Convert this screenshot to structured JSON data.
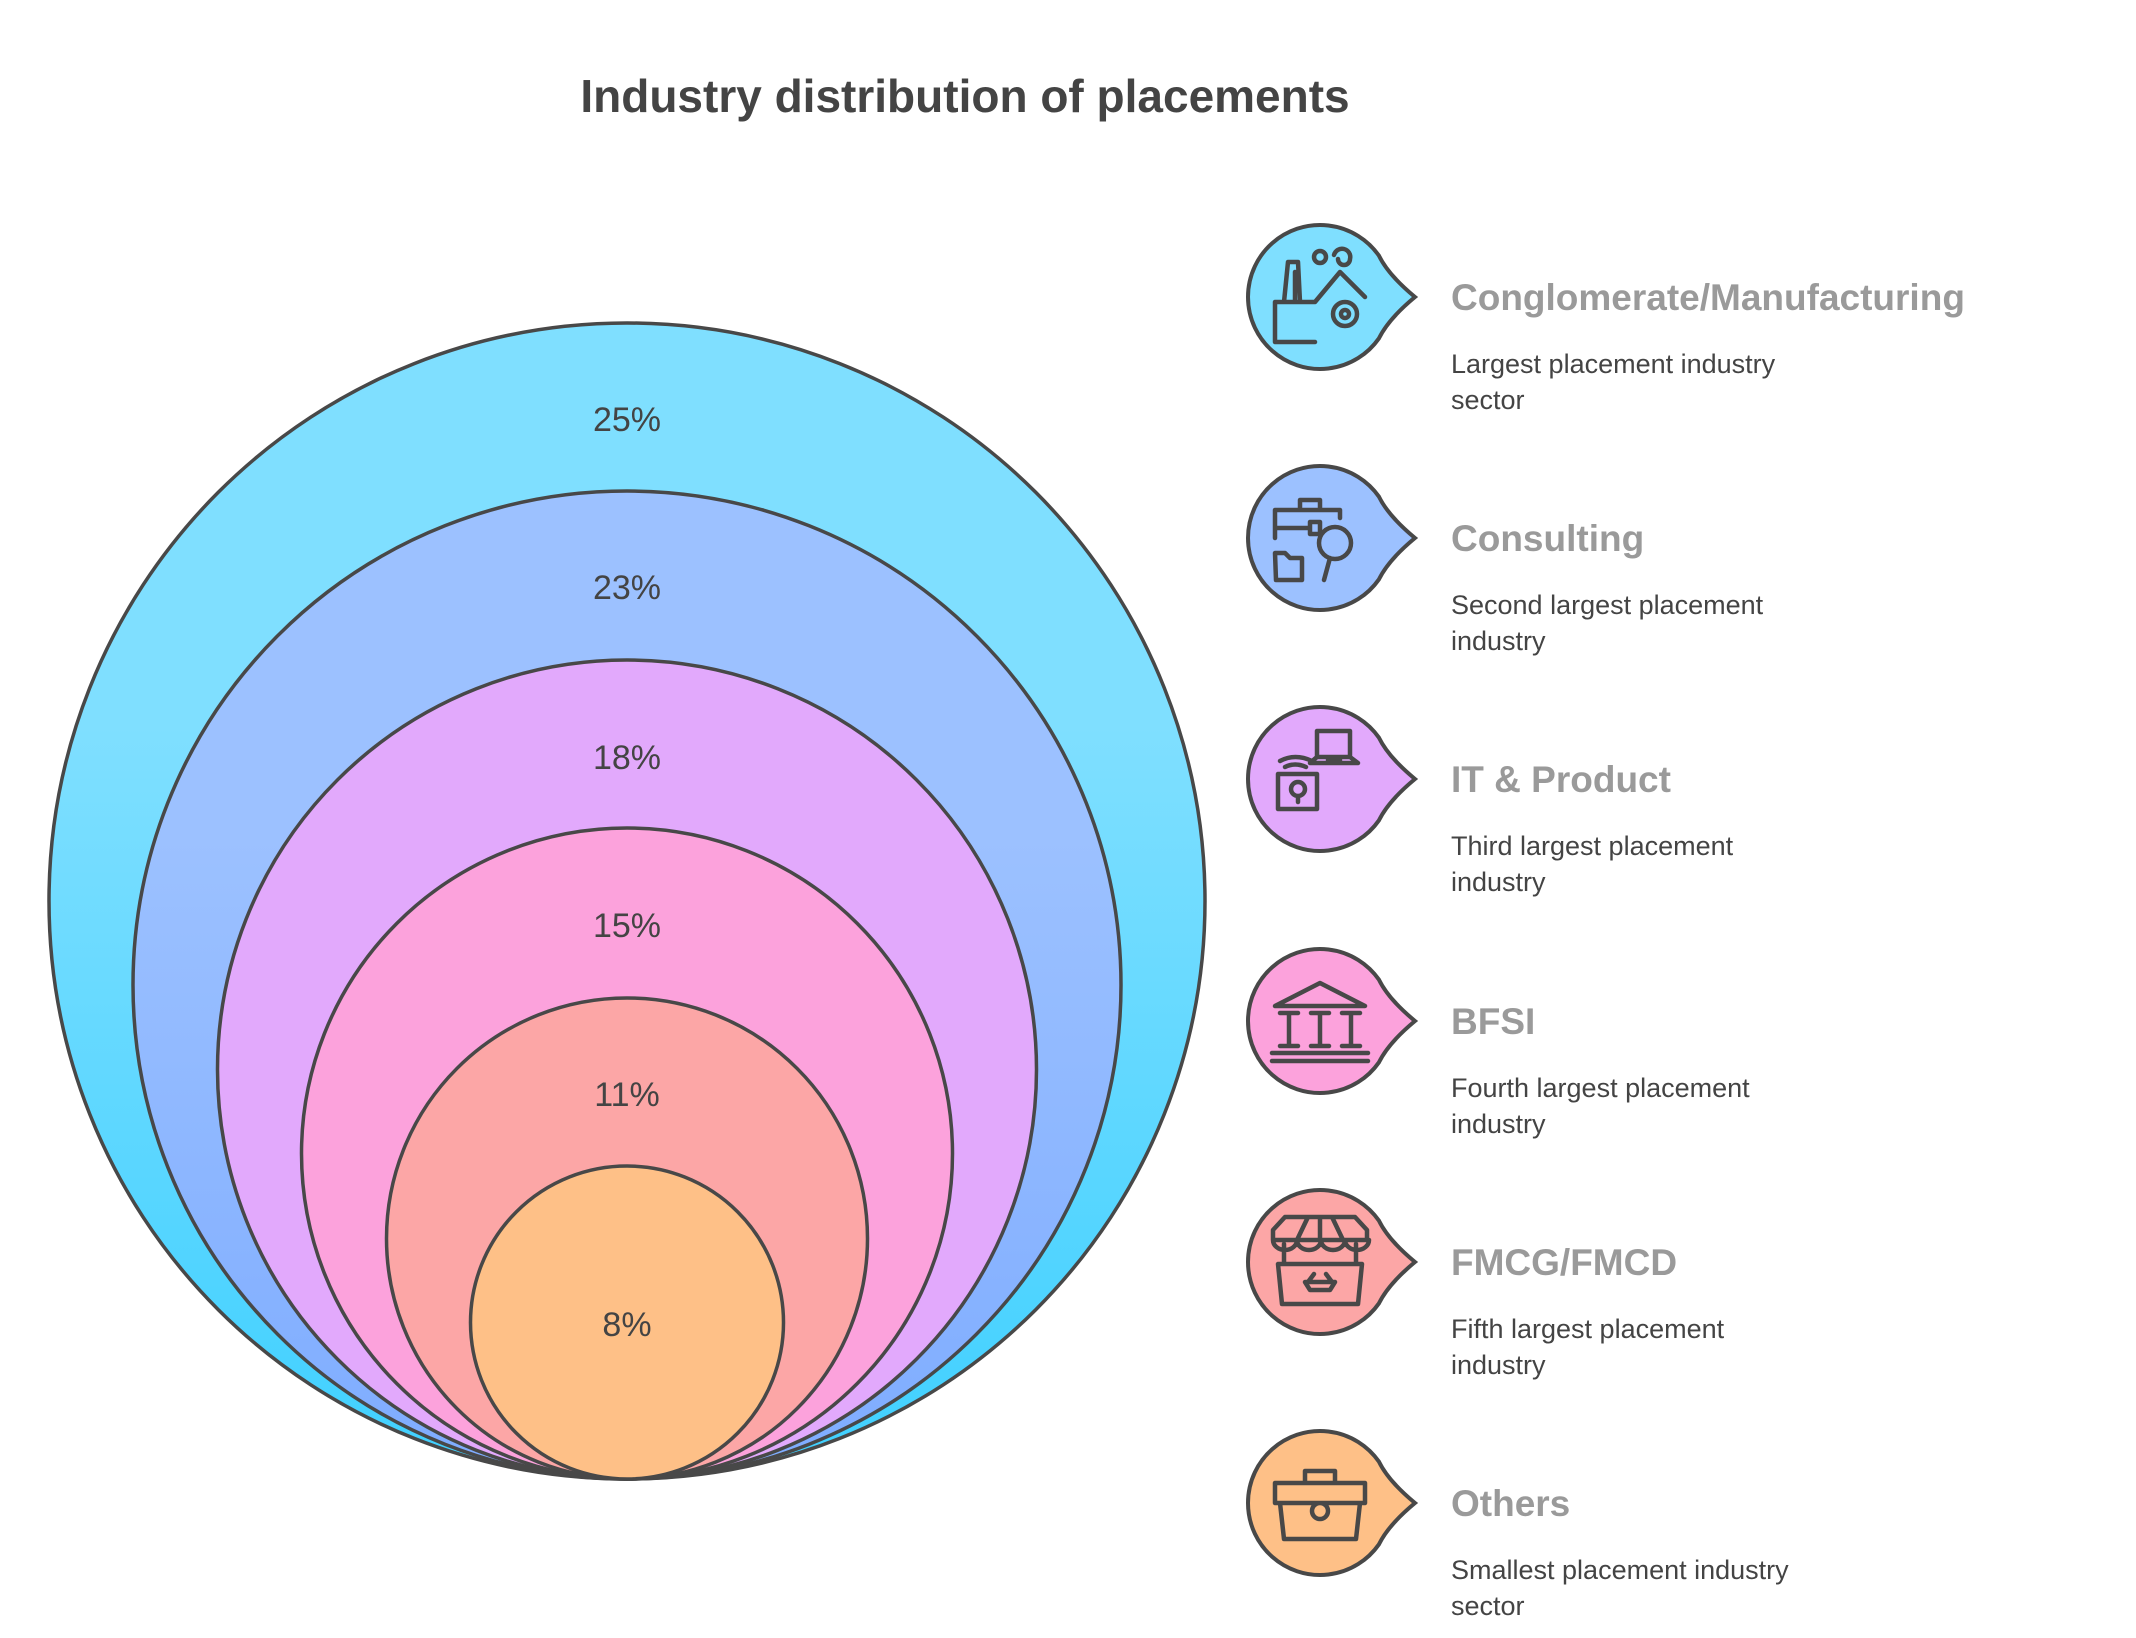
{
  "chart_data": {
    "type": "nested-circles",
    "title": "Industry distribution of placements",
    "unit": "%",
    "items": [
      {
        "label": "Conglomerate/Manufacturing",
        "value": 25,
        "value_label": "25%",
        "description": [
          "Largest placement industry",
          "sector"
        ],
        "color": "#7FDFFF",
        "color_bottom": "#3FD0FF",
        "icon": "factory-icon"
      },
      {
        "label": "Consulting",
        "value": 23,
        "value_label": "23%",
        "description": [
          "Second largest placement",
          "industry"
        ],
        "color": "#9CC1FF",
        "color_bottom": "#7EACFF",
        "icon": "briefcase-magnifier-icon"
      },
      {
        "label": "IT & Product",
        "value": 18,
        "value_label": "18%",
        "description": [
          "Third largest placement",
          "industry"
        ],
        "color": "#E2A9FC",
        "color_bottom": "#E2A9FC",
        "icon": "laptop-lock-icon"
      },
      {
        "label": "BFSI",
        "value": 15,
        "value_label": "15%",
        "description": [
          "Fourth largest placement",
          "industry"
        ],
        "color": "#FCA2DC",
        "color_bottom": "#FCA2DC",
        "icon": "bank-icon"
      },
      {
        "label": "FMCG/FMCD",
        "value": 11,
        "value_label": "11%",
        "description": [
          "Fifth largest placement",
          "industry"
        ],
        "color": "#FCA6A6",
        "color_bottom": "#FCA6A6",
        "icon": "market-stall-icon"
      },
      {
        "label": "Others",
        "value": 8,
        "value_label": "8%",
        "description": [
          "Smallest placement industry",
          "sector"
        ],
        "color": "#FEC087",
        "color_bottom": "#FEC087",
        "icon": "toolbox-icon"
      }
    ],
    "stroke_color": "#484848"
  }
}
